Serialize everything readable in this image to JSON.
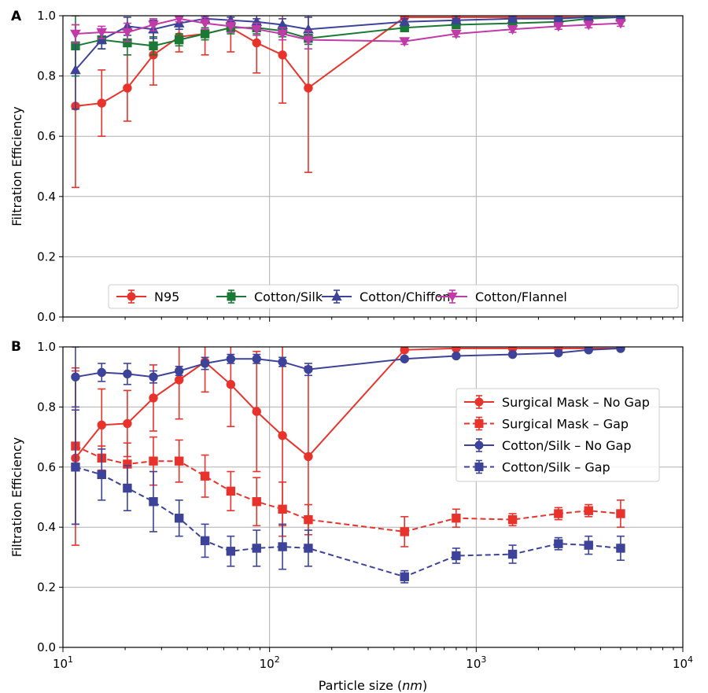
{
  "chart_data": [
    {
      "panel": "A",
      "type": "line",
      "xscale": "log",
      "xlim": [
        10,
        10000
      ],
      "ylim": [
        0.0,
        1.0
      ],
      "xlabel": "",
      "ylabel": "Filtration Efficiency",
      "yticks": [
        "0.0",
        "0.2",
        "0.4",
        "0.6",
        "0.8",
        "1.0"
      ],
      "grid": true,
      "legend_position": "bottom, horizontal",
      "series": [
        {
          "name": "N95",
          "color": "#e8332c",
          "marker": "circle",
          "dash": "solid",
          "x": [
            11.5,
            15.4,
            20.5,
            27.4,
            36.5,
            48.7,
            64.9,
            86.6,
            115.5,
            154,
            450,
            800,
            1500,
            2500,
            3500,
            5000
          ],
          "y": [
            0.7,
            0.71,
            0.76,
            0.87,
            0.93,
            0.94,
            0.96,
            0.91,
            0.87,
            0.76,
            0.995,
            0.995,
            0.995,
            0.995,
            0.995,
            0.995
          ],
          "err": [
            0.27,
            0.11,
            0.11,
            0.1,
            0.05,
            0.07,
            0.08,
            0.1,
            0.16,
            0.28,
            0.005,
            0.005,
            0.005,
            0.005,
            0.005,
            0.005
          ]
        },
        {
          "name": "Cotton/Silk",
          "color": "#1a7a35",
          "marker": "square",
          "dash": "solid",
          "x": [
            11.5,
            15.4,
            20.5,
            27.4,
            36.5,
            48.7,
            64.9,
            86.6,
            115.5,
            154,
            450,
            800,
            1500,
            2500,
            3500,
            5000
          ],
          "y": [
            0.9,
            0.92,
            0.91,
            0.9,
            0.92,
            0.94,
            0.96,
            0.96,
            0.95,
            0.925,
            0.96,
            0.97,
            0.975,
            0.98,
            0.99,
            0.995
          ],
          "err": [
            0.1,
            0.03,
            0.04,
            0.03,
            0.02,
            0.02,
            0.02,
            0.02,
            0.02,
            0.02,
            0.01,
            0.01,
            0.01,
            0.01,
            0.005,
            0.005
          ]
        },
        {
          "name": "Cotton/Chiffon",
          "color": "#3d4399",
          "marker": "triangle-up",
          "dash": "solid",
          "x": [
            11.5,
            15.4,
            20.5,
            27.4,
            36.5,
            48.7,
            64.9,
            86.6,
            115.5,
            154,
            450,
            800,
            1500,
            2500,
            3500,
            5000
          ],
          "y": [
            0.82,
            0.92,
            0.965,
            0.955,
            0.975,
            0.99,
            0.985,
            0.98,
            0.97,
            0.955,
            0.98,
            0.985,
            0.99,
            0.99,
            0.995,
            0.995
          ],
          "err": [
            0.13,
            0.03,
            0.03,
            0.03,
            0.02,
            0.01,
            0.01,
            0.01,
            0.02,
            0.04,
            0.01,
            0.005,
            0.005,
            0.005,
            0.005,
            0.005
          ]
        },
        {
          "name": "Cotton/Flannel",
          "color": "#c03aa8",
          "marker": "triangle-down",
          "dash": "solid",
          "x": [
            11.5,
            15.4,
            20.5,
            27.4,
            36.5,
            48.7,
            64.9,
            86.6,
            115.5,
            154,
            450,
            800,
            1500,
            2500,
            3500,
            5000
          ],
          "y": [
            0.94,
            0.945,
            0.945,
            0.97,
            0.99,
            0.975,
            0.965,
            0.955,
            0.94,
            0.92,
            0.915,
            0.94,
            0.955,
            0.965,
            0.97,
            0.975
          ],
          "err": [
            0.03,
            0.02,
            0.03,
            0.02,
            0.01,
            0.02,
            0.02,
            0.02,
            0.02,
            0.03,
            0.01,
            0.01,
            0.01,
            0.01,
            0.01,
            0.01
          ]
        }
      ]
    },
    {
      "panel": "B",
      "type": "line",
      "xscale": "log",
      "xlim": [
        10,
        10000
      ],
      "ylim": [
        0.0,
        1.0
      ],
      "xlabel": "Particle size (nm)",
      "ylabel": "Filtration Efficiency",
      "yticks": [
        "0.0",
        "0.2",
        "0.4",
        "0.6",
        "0.8",
        "1.0"
      ],
      "xticks": [
        {
          "base": "10",
          "exp": "1"
        },
        {
          "base": "10",
          "exp": "2"
        },
        {
          "base": "10",
          "exp": "3"
        },
        {
          "base": "10",
          "exp": "4"
        }
      ],
      "grid": true,
      "legend_position": "right, vertical",
      "series": [
        {
          "name": "Surgical Mask – No Gap",
          "color": "#e8332c",
          "marker": "circle",
          "dash": "solid",
          "x": [
            11.5,
            15.4,
            20.5,
            27.4,
            36.5,
            48.7,
            64.9,
            86.6,
            115.5,
            154,
            450,
            800,
            1500,
            2500,
            3500,
            5000
          ],
          "y": [
            0.63,
            0.74,
            0.745,
            0.83,
            0.89,
            0.95,
            0.875,
            0.785,
            0.705,
            0.635,
            0.99,
            0.995,
            0.995,
            0.995,
            0.995,
            0.995
          ],
          "err": [
            0.29,
            0.12,
            0.11,
            0.11,
            0.13,
            0.1,
            0.14,
            0.2,
            0.3,
            0.3,
            0.005,
            0.005,
            0.005,
            0.005,
            0.005,
            0.005
          ]
        },
        {
          "name": "Surgical Mask – Gap",
          "color": "#e8332c",
          "marker": "square",
          "dash": "dashed",
          "x": [
            11.5,
            15.4,
            20.5,
            27.4,
            36.5,
            48.7,
            64.9,
            86.6,
            115.5,
            154,
            450,
            800,
            1500,
            2500,
            3500,
            5000
          ],
          "y": [
            0.67,
            0.63,
            0.61,
            0.62,
            0.62,
            0.57,
            0.52,
            0.485,
            0.46,
            0.425,
            0.385,
            0.43,
            0.425,
            0.445,
            0.455,
            0.445
          ],
          "err": [
            0.26,
            0.04,
            0.07,
            0.08,
            0.07,
            0.07,
            0.065,
            0.08,
            0.09,
            0.05,
            0.05,
            0.03,
            0.02,
            0.02,
            0.02,
            0.045
          ]
        },
        {
          "name": "Cotton/Silk – No Gap",
          "color": "#3d4399",
          "marker": "circle",
          "dash": "solid",
          "x": [
            11.5,
            15.4,
            20.5,
            27.4,
            36.5,
            48.7,
            64.9,
            86.6,
            115.5,
            154,
            450,
            800,
            1500,
            2500,
            3500,
            5000
          ],
          "y": [
            0.9,
            0.915,
            0.91,
            0.9,
            0.92,
            0.945,
            0.96,
            0.96,
            0.95,
            0.925,
            0.96,
            0.97,
            0.975,
            0.98,
            0.99,
            0.995
          ],
          "err": [
            0.1,
            0.03,
            0.035,
            0.02,
            0.015,
            0.02,
            0.015,
            0.015,
            0.015,
            0.02,
            0.005,
            0.005,
            0.005,
            0.005,
            0.005,
            0.005
          ]
        },
        {
          "name": "Cotton/Silk – Gap",
          "color": "#3d4399",
          "marker": "square",
          "dash": "dashed",
          "x": [
            11.5,
            15.4,
            20.5,
            27.4,
            36.5,
            48.7,
            64.9,
            86.6,
            115.5,
            154,
            450,
            800,
            1500,
            2500,
            3500,
            5000
          ],
          "y": [
            0.6,
            0.575,
            0.53,
            0.485,
            0.43,
            0.355,
            0.32,
            0.33,
            0.335,
            0.33,
            0.235,
            0.305,
            0.31,
            0.345,
            0.34,
            0.33
          ],
          "err": [
            0.19,
            0.085,
            0.075,
            0.1,
            0.06,
            0.055,
            0.05,
            0.06,
            0.075,
            0.06,
            0.02,
            0.025,
            0.03,
            0.02,
            0.03,
            0.04
          ]
        }
      ]
    }
  ]
}
